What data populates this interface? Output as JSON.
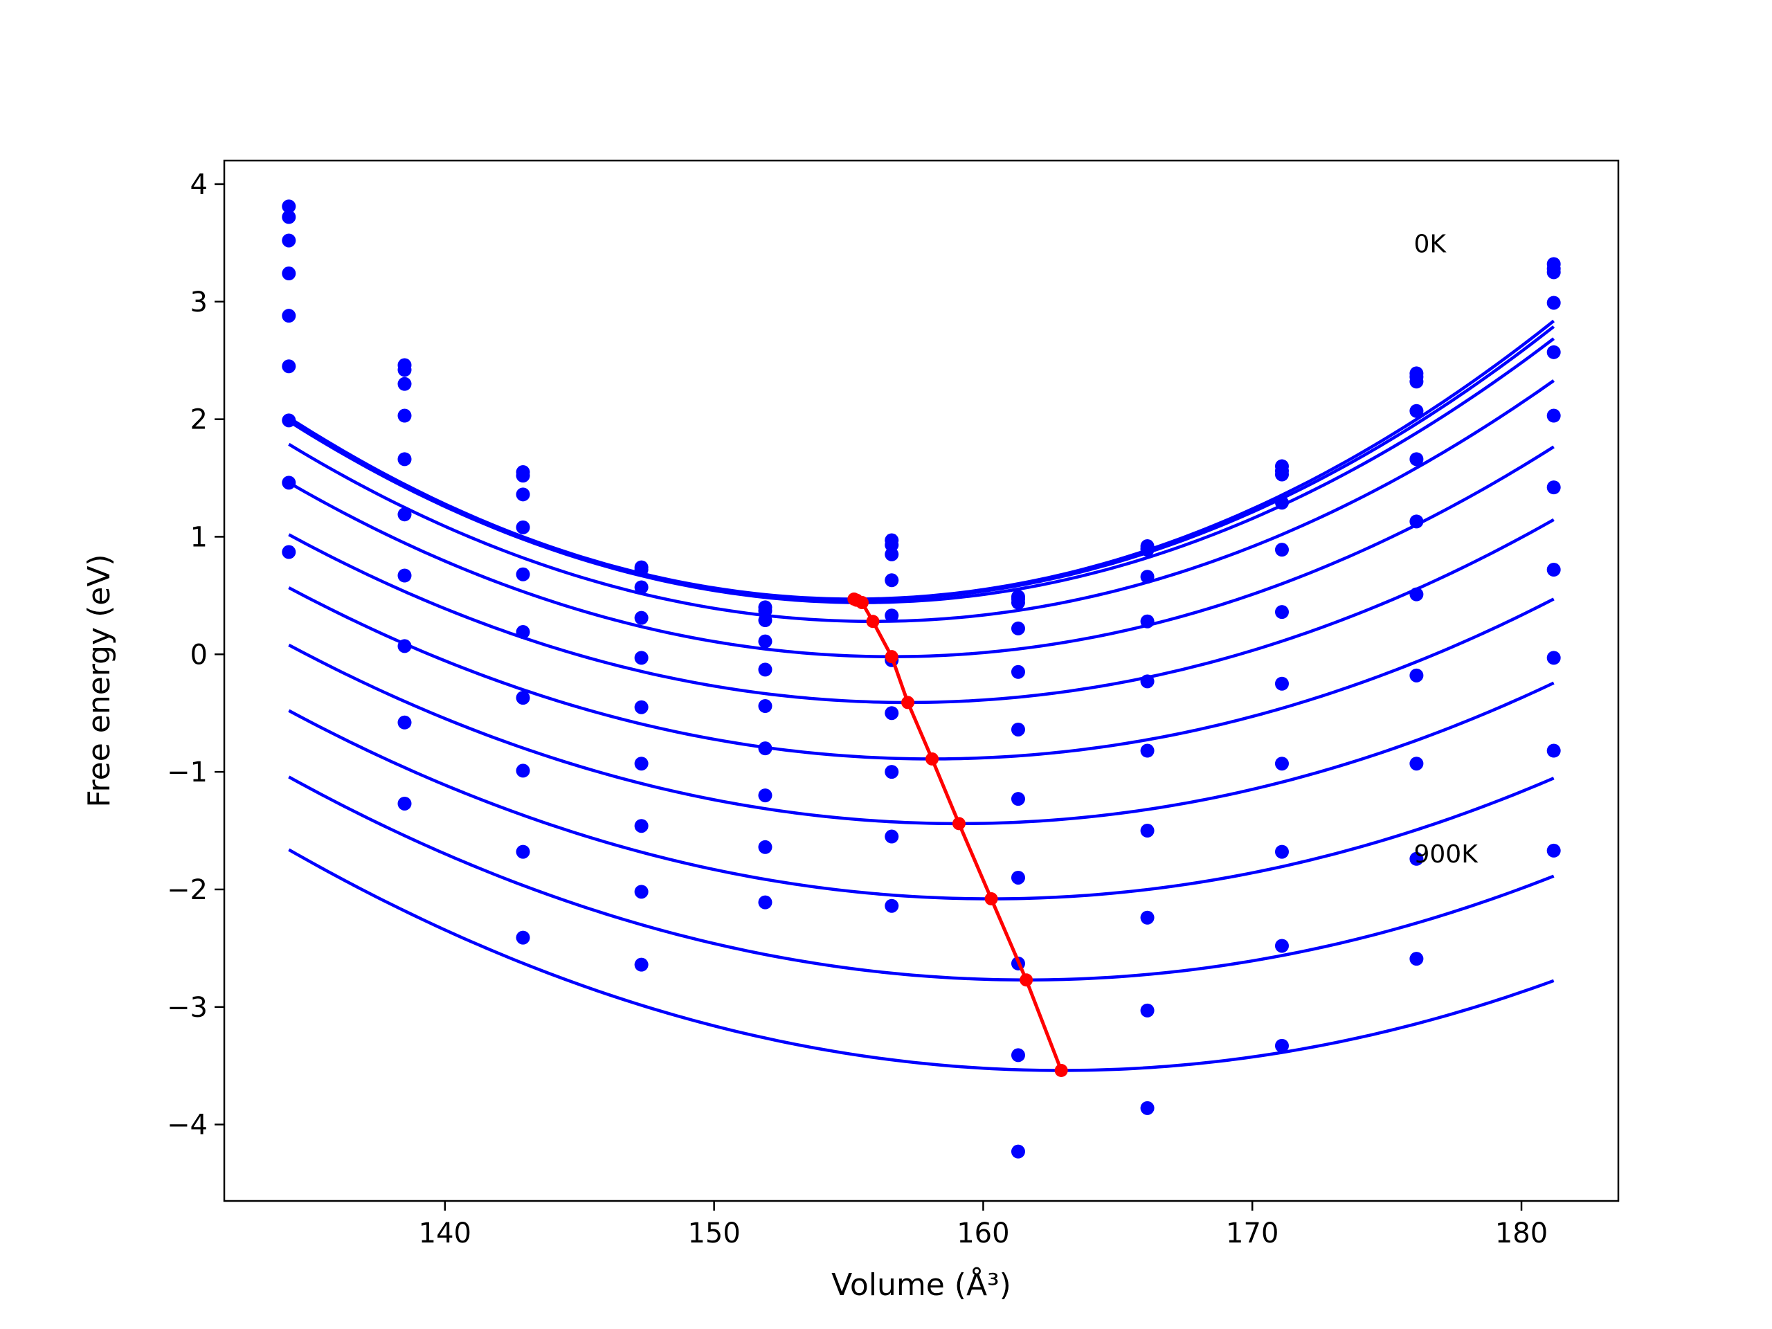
{
  "chart_data": {
    "type": "scatter",
    "title": "",
    "xlabel": "Volume (Å³)",
    "ylabel": "Free energy (eV)",
    "xlim": [
      131.8,
      183.6
    ],
    "ylim": [
      -4.65,
      4.2
    ],
    "xticks": [
      140,
      150,
      160,
      170,
      180
    ],
    "yticks": [
      -4,
      -3,
      -2,
      -1,
      0,
      1,
      2,
      3,
      4
    ],
    "xtick_labels": [
      "140",
      "150",
      "160",
      "170",
      "180"
    ],
    "ytick_labels": [
      "−4",
      "−3",
      "−2",
      "−1",
      "0",
      "1",
      "2",
      "3",
      "4"
    ],
    "grid": false,
    "legend": "none",
    "annotations": [
      {
        "text": "0K",
        "x": 176.0,
        "y": 3.42
      },
      {
        "text": "900K",
        "x": 176.0,
        "y": -1.77
      }
    ],
    "x": [
      134.2,
      138.5,
      142.9,
      147.3,
      151.9,
      156.6,
      161.3,
      166.1,
      171.1,
      176.1,
      181.2
    ],
    "series": [
      {
        "y": [
          3.81,
          2.46,
          1.55,
          0.74,
          0.4,
          0.97,
          0.49,
          0.92,
          1.6,
          2.39,
          3.32
        ]
      },
      {
        "y": [
          3.72,
          2.42,
          1.52,
          0.72,
          0.37,
          0.93,
          0.47,
          0.9,
          1.56,
          2.36,
          3.28
        ]
      },
      {
        "y": [
          3.52,
          2.3,
          1.36,
          0.57,
          0.29,
          0.85,
          0.44,
          0.89,
          1.53,
          2.32,
          3.25
        ]
      },
      {
        "y": [
          3.24,
          2.03,
          1.08,
          0.31,
          0.11,
          0.63,
          0.22,
          0.66,
          1.29,
          2.07,
          2.99
        ]
      },
      {
        "y": [
          2.88,
          1.66,
          0.68,
          -0.03,
          -0.13,
          0.33,
          -0.15,
          0.28,
          0.89,
          1.66,
          2.57
        ]
      },
      {
        "y": [
          2.45,
          1.19,
          0.19,
          -0.45,
          -0.44,
          -0.05,
          -0.64,
          -0.23,
          0.36,
          1.13,
          2.03
        ]
      },
      {
        "y": [
          1.99,
          0.67,
          -0.37,
          -0.93,
          -0.8,
          -0.5,
          -1.23,
          -0.82,
          -0.25,
          0.51,
          1.42
        ]
      },
      {
        "y": [
          1.46,
          0.07,
          -0.99,
          -1.46,
          -1.2,
          -1.0,
          -1.9,
          -1.5,
          -0.93,
          -0.18,
          0.72
        ]
      },
      {
        "y": [
          0.87,
          -0.58,
          -1.68,
          -2.02,
          -1.64,
          -1.55,
          -2.63,
          -2.24,
          -1.68,
          -0.93,
          -0.03
        ]
      },
      {
        "y": [
          null,
          -1.27,
          -2.41,
          -2.64,
          -2.11,
          -2.14,
          -3.41,
          -3.03,
          -2.48,
          -1.74,
          -0.82
        ]
      },
      {
        "y": [
          null,
          null,
          null,
          null,
          null,
          null,
          -4.23,
          -3.86,
          -3.33,
          -2.59,
          -1.67
        ]
      }
    ],
    "fits": [
      {
        "x_range": [
          134.2,
          181.2
        ],
        "v0": 155.2,
        "fmin": 0.47,
        "a": 0.0035
      },
      {
        "x_range": [
          134.2,
          181.2
        ],
        "v0": 155.3,
        "fmin": 0.46,
        "a": 0.00347
      },
      {
        "x_range": [
          134.2,
          181.2
        ],
        "v0": 155.5,
        "fmin": 0.44,
        "a": 0.0034
      },
      {
        "x_range": [
          134.2,
          181.2
        ],
        "v0": 155.9,
        "fmin": 0.28,
        "a": 0.0032
      },
      {
        "x_range": [
          134.2,
          181.2
        ],
        "v0": 156.6,
        "fmin": -0.02,
        "a": 0.00295
      },
      {
        "x_range": [
          134.2,
          181.2
        ],
        "v0": 157.2,
        "fmin": -0.41,
        "a": 0.0027
      },
      {
        "x_range": [
          134.2,
          181.2
        ],
        "v0": 158.1,
        "fmin": -0.89,
        "a": 0.00255
      },
      {
        "x_range": [
          134.2,
          181.2
        ],
        "v0": 159.1,
        "fmin": -1.44,
        "a": 0.00245
      },
      {
        "x_range": [
          134.2,
          181.2
        ],
        "v0": 160.3,
        "fmin": -2.08,
        "a": 0.00235
      },
      {
        "x_range": [
          134.2,
          181.2
        ],
        "v0": 161.6,
        "fmin": -2.77,
        "a": 0.0023
      },
      {
        "x_range": [
          134.2,
          181.2
        ],
        "v0": 162.9,
        "fmin": -3.54,
        "a": 0.00228
      }
    ],
    "minima": {
      "x": [
        155.2,
        155.3,
        155.5,
        155.9,
        156.6,
        157.2,
        158.1,
        159.1,
        160.3,
        161.6,
        162.9
      ],
      "y": [
        0.47,
        0.46,
        0.44,
        0.28,
        -0.02,
        -0.41,
        -0.89,
        -1.44,
        -2.08,
        -2.77,
        -3.54
      ]
    },
    "colors": {
      "points": "#0000ff",
      "fits": "#0000ff",
      "minima": "#ff0000",
      "axes": "#000000"
    }
  }
}
